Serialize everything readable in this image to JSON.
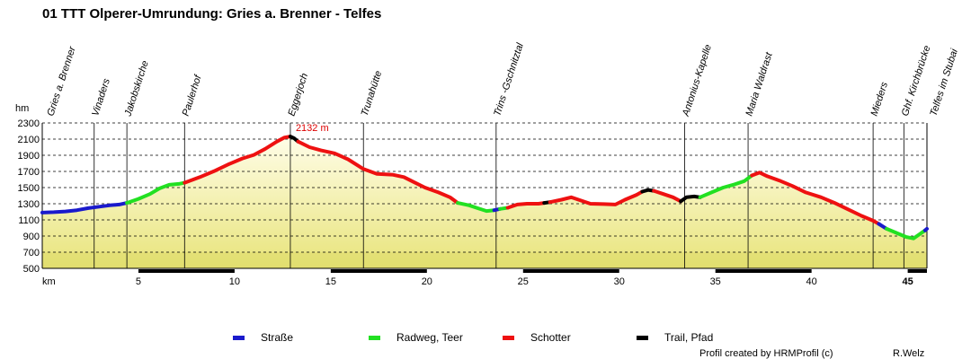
{
  "chart_data": {
    "type": "area",
    "title": "01 TTT Olperer-Umrundung: Gries a. Brenner - Telfes",
    "xlabel": "km",
    "ylabel": "hm",
    "xlim": [
      0,
      46
    ],
    "ylim": [
      500,
      2300
    ],
    "yticks": [
      500,
      700,
      900,
      1100,
      1300,
      1500,
      1700,
      1900,
      2100,
      2300
    ],
    "xticks": [
      5,
      10,
      15,
      20,
      25,
      30,
      35,
      40,
      45
    ],
    "max_label": "2132 m",
    "max_point": {
      "x": 12.9,
      "y": 2132
    },
    "waypoints": [
      {
        "name": "Gries a. Brenner",
        "km": 0,
        "line": false
      },
      {
        "name": "Vinaders",
        "km": 2.7,
        "line": true
      },
      {
        "name": "Jakobskirche",
        "km": 4.4,
        "line": true
      },
      {
        "name": "Paulerhof",
        "km": 7.4,
        "line": true
      },
      {
        "name": "Eggerjoch",
        "km": 12.9,
        "line": true
      },
      {
        "name": "Trunahütte",
        "km": 16.7,
        "line": true
      },
      {
        "name": "Trins -Gschnitztal",
        "km": 23.6,
        "line": true
      },
      {
        "name": "Antonius-Kapelle",
        "km": 33.4,
        "line": true
      },
      {
        "name": "Maria Waldrast",
        "km": 36.7,
        "line": true
      },
      {
        "name": "Mieders",
        "km": 43.2,
        "line": true
      },
      {
        "name": "Ghf. Kirchbrücke",
        "km": 44.8,
        "line": true
      },
      {
        "name": "Telfes im Stubai",
        "km": 46,
        "line": false
      }
    ],
    "series": [
      {
        "surface": "strasse",
        "points": [
          [
            0,
            1190
          ],
          [
            0.6,
            1195
          ],
          [
            1.2,
            1205
          ],
          [
            1.8,
            1220
          ],
          [
            2.4,
            1245
          ],
          [
            3.0,
            1265
          ],
          [
            3.5,
            1280
          ],
          [
            4.0,
            1290
          ],
          [
            4.4,
            1310
          ]
        ]
      },
      {
        "surface": "radweg",
        "points": [
          [
            4.4,
            1310
          ],
          [
            5.0,
            1360
          ],
          [
            5.6,
            1420
          ],
          [
            6.1,
            1490
          ],
          [
            6.6,
            1535
          ],
          [
            7.1,
            1545
          ],
          [
            7.4,
            1560
          ]
        ]
      },
      {
        "surface": "schotter",
        "points": [
          [
            7.4,
            1560
          ],
          [
            8.2,
            1630
          ],
          [
            9.0,
            1710
          ],
          [
            9.7,
            1790
          ],
          [
            10.4,
            1860
          ],
          [
            11.0,
            1905
          ],
          [
            11.6,
            1980
          ],
          [
            12.2,
            2070
          ],
          [
            12.6,
            2120
          ],
          [
            12.9,
            2132
          ]
        ]
      },
      {
        "surface": "trail",
        "points": [
          [
            12.9,
            2132
          ],
          [
            13.1,
            2110
          ],
          [
            13.3,
            2070
          ]
        ]
      },
      {
        "surface": "schotter",
        "points": [
          [
            13.3,
            2070
          ],
          [
            13.9,
            2000
          ],
          [
            14.5,
            1960
          ],
          [
            15.2,
            1925
          ],
          [
            15.9,
            1850
          ],
          [
            16.7,
            1730
          ],
          [
            17.4,
            1670
          ],
          [
            18.2,
            1660
          ],
          [
            18.8,
            1630
          ],
          [
            19.3,
            1570
          ],
          [
            19.9,
            1500
          ],
          [
            20.6,
            1440
          ],
          [
            21.2,
            1380
          ],
          [
            21.6,
            1310
          ]
        ]
      },
      {
        "surface": "radweg",
        "points": [
          [
            21.6,
            1310
          ],
          [
            22.2,
            1280
          ],
          [
            22.7,
            1240
          ],
          [
            23.1,
            1210
          ],
          [
            23.5,
            1220
          ]
        ]
      },
      {
        "surface": "strasse",
        "points": [
          [
            23.5,
            1220
          ],
          [
            23.8,
            1235
          ]
        ]
      },
      {
        "surface": "radweg",
        "points": [
          [
            23.8,
            1235
          ],
          [
            24.2,
            1250
          ]
        ]
      },
      {
        "surface": "schotter",
        "points": [
          [
            24.2,
            1250
          ],
          [
            24.7,
            1290
          ],
          [
            25.2,
            1300
          ],
          [
            25.8,
            1300
          ],
          [
            26.1,
            1310
          ]
        ]
      },
      {
        "surface": "trail",
        "points": [
          [
            26.1,
            1310
          ],
          [
            26.4,
            1320
          ]
        ]
      },
      {
        "surface": "schotter",
        "points": [
          [
            26.4,
            1320
          ],
          [
            27.0,
            1350
          ],
          [
            27.5,
            1380
          ],
          [
            28.0,
            1340
          ],
          [
            28.5,
            1300
          ],
          [
            29.2,
            1295
          ],
          [
            29.8,
            1290
          ],
          [
            30.3,
            1350
          ],
          [
            30.9,
            1410
          ],
          [
            31.2,
            1450
          ]
        ]
      },
      {
        "surface": "trail",
        "points": [
          [
            31.2,
            1450
          ],
          [
            31.5,
            1470
          ],
          [
            31.8,
            1460
          ]
        ]
      },
      {
        "surface": "schotter",
        "points": [
          [
            31.8,
            1460
          ],
          [
            32.3,
            1420
          ],
          [
            32.8,
            1380
          ],
          [
            33.2,
            1330
          ]
        ]
      },
      {
        "surface": "trail",
        "points": [
          [
            33.2,
            1330
          ],
          [
            33.5,
            1380
          ],
          [
            33.9,
            1390
          ],
          [
            34.2,
            1380
          ]
        ]
      },
      {
        "surface": "radweg",
        "points": [
          [
            34.2,
            1380
          ],
          [
            34.8,
            1440
          ],
          [
            35.4,
            1500
          ],
          [
            36.0,
            1540
          ],
          [
            36.5,
            1580
          ],
          [
            36.9,
            1650
          ]
        ]
      },
      {
        "surface": "schotter",
        "points": [
          [
            36.9,
            1650
          ],
          [
            37.3,
            1685
          ],
          [
            37.7,
            1640
          ],
          [
            38.4,
            1580
          ],
          [
            39.0,
            1520
          ],
          [
            39.7,
            1440
          ],
          [
            40.5,
            1380
          ],
          [
            41.2,
            1310
          ],
          [
            41.9,
            1230
          ],
          [
            42.6,
            1150
          ],
          [
            43.2,
            1090
          ],
          [
            43.5,
            1050
          ]
        ]
      },
      {
        "surface": "strasse",
        "points": [
          [
            43.5,
            1050
          ],
          [
            43.9,
            990
          ]
        ]
      },
      {
        "surface": "radweg",
        "points": [
          [
            43.9,
            990
          ],
          [
            44.4,
            940
          ],
          [
            44.9,
            890
          ],
          [
            45.3,
            870
          ],
          [
            45.6,
            920
          ],
          [
            45.9,
            970
          ]
        ]
      },
      {
        "surface": "strasse",
        "points": [
          [
            45.9,
            970
          ],
          [
            46.0,
            990
          ]
        ]
      }
    ],
    "x_track_segments": [
      [
        5,
        10
      ],
      [
        15,
        20
      ],
      [
        25,
        30
      ],
      [
        35,
        40
      ],
      [
        45,
        46
      ]
    ],
    "legend": [
      {
        "key": "strasse",
        "label": "Straße"
      },
      {
        "key": "radweg",
        "label": "Radweg, Teer"
      },
      {
        "key": "schotter",
        "label": "Schotter"
      },
      {
        "key": "trail",
        "label": "Trail, Pfad"
      }
    ]
  },
  "colors": {
    "strasse": "#1a1acc",
    "radweg": "#22e022",
    "schotter": "#ee1111",
    "trail": "#000000",
    "max_label": "#dd0000",
    "fill_top": "#fffde8",
    "fill_bottom": "#e8e47a",
    "fill_base": "#d8d45a"
  },
  "footer": {
    "credit": "Profil created by HRMProfil (c)",
    "author": "R.Welz"
  }
}
